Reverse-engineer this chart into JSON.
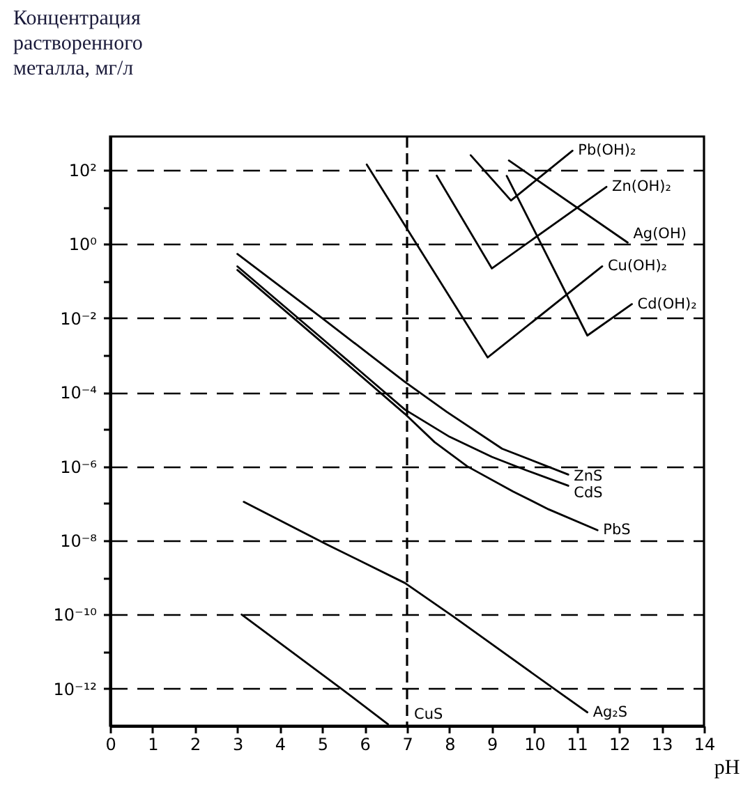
{
  "chart_data": {
    "type": "line",
    "ylabel": "Концентрация\nрастворенного\nметалла, мг/л",
    "xlabel": "pH",
    "xlim": [
      0,
      14
    ],
    "xticks": [
      0,
      1,
      2,
      3,
      4,
      5,
      6,
      7,
      8,
      9,
      10,
      11,
      12,
      13,
      14
    ],
    "ylim": [
      1e-13,
      800
    ],
    "log": "y",
    "grid": "y",
    "legend": false,
    "marker": "none",
    "line_style": "solid",
    "yticks": [
      {
        "value": 100,
        "label": "10²"
      },
      {
        "value": 10,
        "label": null
      },
      {
        "value": 1,
        "label": "10⁰"
      },
      {
        "value": 0.1,
        "label": null
      },
      {
        "value": 0.01,
        "label": "10⁻²"
      },
      {
        "value": 0.001,
        "label": null
      },
      {
        "value": 0.0001,
        "label": "10⁻⁴"
      },
      {
        "value": 1e-05,
        "label": null
      },
      {
        "value": 1e-06,
        "label": "10⁻⁶"
      },
      {
        "value": 1e-07,
        "label": null
      },
      {
        "value": 1e-08,
        "label": "10⁻⁸"
      },
      {
        "value": 1e-09,
        "label": null
      },
      {
        "value": 1e-10,
        "label": "10⁻¹⁰"
      },
      {
        "value": 1e-11,
        "label": null
      },
      {
        "value": 1e-12,
        "label": "10⁻¹²"
      }
    ],
    "ref_lines": [
      {
        "axis": "x",
        "value": 7,
        "line_style": "dashed",
        "color": "#000000"
      }
    ],
    "series": [
      {
        "name": "Pb(OH)₂",
        "color": "#000000",
        "x": [
          8.5,
          9.45,
          10.9
        ],
        "values": [
          250,
          15,
          330
        ]
      },
      {
        "name": "Zn(OH)₂",
        "color": "#000000",
        "x": [
          7.7,
          9.0,
          11.7
        ],
        "values": [
          70,
          0.22,
          35
        ]
      },
      {
        "name": "Ag(OH)",
        "color": "#000000",
        "x": [
          9.4,
          12.2
        ],
        "values": [
          180,
          1.1
        ]
      },
      {
        "name": "Cu(OH)₂",
        "color": "#000000",
        "x": [
          6.05,
          8.9,
          11.6
        ],
        "values": [
          140,
          0.00087,
          0.25
        ]
      },
      {
        "name": "Cd(OH)₂",
        "color": "#000000",
        "x": [
          9.35,
          11.25,
          12.3
        ],
        "values": [
          69,
          0.0034,
          0.024
        ]
      },
      {
        "name": "ZnS",
        "color": "#000000",
        "x": [
          3.0,
          5.0,
          6.95,
          7.93,
          9.24,
          10.8
        ],
        "values": [
          0.54,
          0.01,
          0.00019,
          3e-05,
          3e-06,
          6e-07
        ]
      },
      {
        "name": "CdS",
        "color": "#000000",
        "x": [
          3.0,
          5.0,
          6.95,
          8.0,
          9.0,
          9.8,
          10.8
        ],
        "values": [
          0.25,
          0.0028,
          3.4e-05,
          6.3e-06,
          1.8e-06,
          7.9e-07,
          3e-07
        ]
      },
      {
        "name": "PbS",
        "color": "#000000",
        "x": [
          3.0,
          5.0,
          6.95,
          7.65,
          8.42,
          9.5,
          10.34,
          11.49
        ],
        "values": [
          0.2,
          0.0022,
          2.6e-05,
          4.5e-06,
          1e-06,
          2.1e-07,
          6.9e-08,
          1.9e-08
        ]
      },
      {
        "name": "Ag₂S",
        "color": "#000000",
        "x": [
          3.15,
          5.1,
          6.95,
          8.1,
          10.5,
          11.25
        ],
        "values": [
          1.1e-07,
          7.9e-09,
          7.1e-10,
          8.7e-11,
          9.3e-13,
          2.3e-13
        ]
      },
      {
        "name": "CuS",
        "color": "#000000",
        "x": [
          3.1,
          5.45,
          6.55
        ],
        "values": [
          1e-10,
          1e-12,
          1.1e-13
        ]
      }
    ]
  }
}
